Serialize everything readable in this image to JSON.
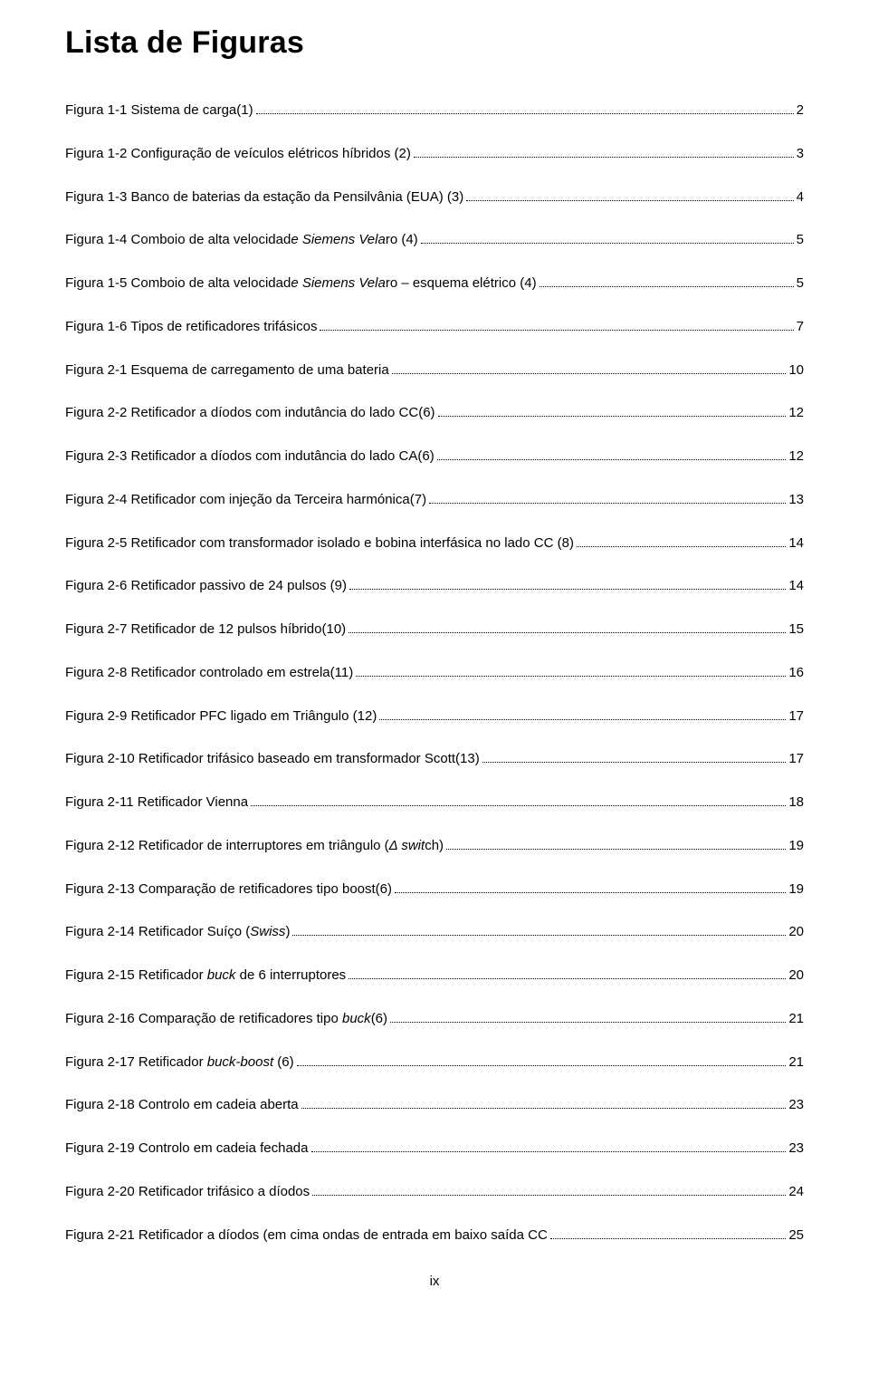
{
  "title": "Lista de Figuras",
  "pageNumber": "ix",
  "entries": [
    {
      "label": "Figura 1-1 Sistema de carga(1)",
      "page": "2"
    },
    {
      "label": "Figura 1-2 Configuração de veículos elétricos híbridos (2)",
      "page": "3"
    },
    {
      "label": "Figura 1-3 Banco de baterias da estação da Pensilvânia (EUA) (3)",
      "page": "4"
    },
    {
      "label": "Figura 1-4 Comboio de alta velocidade Siemens Velaro (4)",
      "page": "5",
      "italicRanges": [
        [
          36,
          50
        ]
      ]
    },
    {
      "label": "Figura 1-5 Comboio de alta velocidade Siemens Velaro – esquema elétrico (4)",
      "page": "5",
      "italicRanges": [
        [
          36,
          50
        ]
      ]
    },
    {
      "label": "Figura 1-6 Tipos de retificadores trifásicos",
      "page": "7"
    },
    {
      "label": "Figura 2-1 Esquema de carregamento de uma bateria",
      "page": "10"
    },
    {
      "label": "Figura 2-2 Retificador a díodos com indutância do lado CC(6)",
      "page": "12"
    },
    {
      "label": "Figura 2-3 Retificador a díodos com indutância do lado CA(6)",
      "page": "12"
    },
    {
      "label": "Figura 2-4 Retificador com injeção da Terceira harmónica(7)",
      "page": "13"
    },
    {
      "label": "Figura 2-5 Retificador com transformador isolado e bobina interfásica no lado CC (8)",
      "page": "14"
    },
    {
      "label": "Figura 2-6 Retificador passivo de 24 pulsos (9)",
      "page": "14"
    },
    {
      "label": "Figura 2-7 Retificador de 12 pulsos híbrido(10)",
      "page": "15"
    },
    {
      "label": "Figura 2-8 Retificador controlado em estrela(11)",
      "page": "16"
    },
    {
      "label": "Figura 2-9 Retificador PFC ligado em Triângulo (12)",
      "page": "17"
    },
    {
      "label": "Figura 2-10 Retificador trifásico baseado em transformador Scott(13)",
      "page": "17"
    },
    {
      "label": "Figura 2-11 Retificador Vienna",
      "page": "18"
    },
    {
      "label": "Figura 2-12 Retificador de interruptores em triângulo (Δ switch)",
      "page": "19",
      "italicRanges": [
        [
          55,
          61
        ]
      ]
    },
    {
      "label": "Figura 2-13 Comparação de retificadores tipo boost(6)",
      "page": "19"
    },
    {
      "label": "Figura 2-14 Retificador Suíço (Swiss)",
      "page": "20",
      "italicRanges": [
        [
          31,
          36
        ]
      ]
    },
    {
      "label": "Figura 2-15 Retificador buck de 6 interruptores",
      "page": "20",
      "italicRanges": [
        [
          24,
          28
        ]
      ]
    },
    {
      "label": "Figura 2-16 Comparação de retificadores tipo buck(6)",
      "page": "21",
      "italicRanges": [
        [
          45,
          49
        ]
      ]
    },
    {
      "label": "Figura 2-17 Retificador buck-boost (6)",
      "page": "21",
      "italicRanges": [
        [
          24,
          34
        ]
      ]
    },
    {
      "label": "Figura 2-18 Controlo em cadeia aberta",
      "page": "23"
    },
    {
      "label": "Figura 2-19 Controlo em cadeia fechada",
      "page": "23"
    },
    {
      "label": "Figura 2-20 Retificador trifásico a díodos",
      "page": "24"
    },
    {
      "label": "Figura 2-21 Retificador a díodos (em cima ondas de entrada em baixo saída CC",
      "page": "25"
    }
  ]
}
